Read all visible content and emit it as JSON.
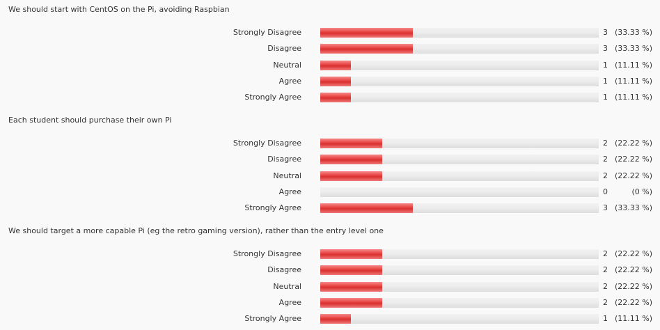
{
  "chart_data": [
    {
      "type": "bar",
      "orientation": "horizontal",
      "title": "We should start with CentOS on the Pi, avoiding Raspbian",
      "categories": [
        "Strongly Disagree",
        "Disagree",
        "Neutral",
        "Agree",
        "Strongly Agree"
      ],
      "values": [
        3,
        3,
        1,
        1,
        1
      ],
      "percent_labels": [
        "(33.33 %)",
        "(33.33 %)",
        "(11.11 %)",
        "(11.11 %)",
        "(11.11 %)"
      ],
      "xlim": [
        0,
        9
      ],
      "grid": false,
      "bar_color": "#e94646"
    },
    {
      "type": "bar",
      "orientation": "horizontal",
      "title": "Each student should purchase their own Pi",
      "categories": [
        "Strongly Disagree",
        "Disagree",
        "Neutral",
        "Agree",
        "Strongly Agree"
      ],
      "values": [
        2,
        2,
        2,
        0,
        3
      ],
      "percent_labels": [
        "(22.22 %)",
        "(22.22 %)",
        "(22.22 %)",
        "(0 %)",
        "(33.33 %)"
      ],
      "xlim": [
        0,
        9
      ],
      "grid": false,
      "bar_color": "#e94646"
    },
    {
      "type": "bar",
      "orientation": "horizontal",
      "title": "We should target a more capable Pi (eg the retro gaming version), rather than the entry level one",
      "categories": [
        "Strongly Disagree",
        "Disagree",
        "Neutral",
        "Agree",
        "Strongly Agree"
      ],
      "values": [
        2,
        2,
        2,
        2,
        1
      ],
      "percent_labels": [
        "(22.22 %)",
        "(22.22 %)",
        "(22.22 %)",
        "(22.22 %)",
        "(11.11 %)"
      ],
      "xlim": [
        0,
        9
      ],
      "grid": false,
      "bar_color": "#e94646"
    }
  ]
}
